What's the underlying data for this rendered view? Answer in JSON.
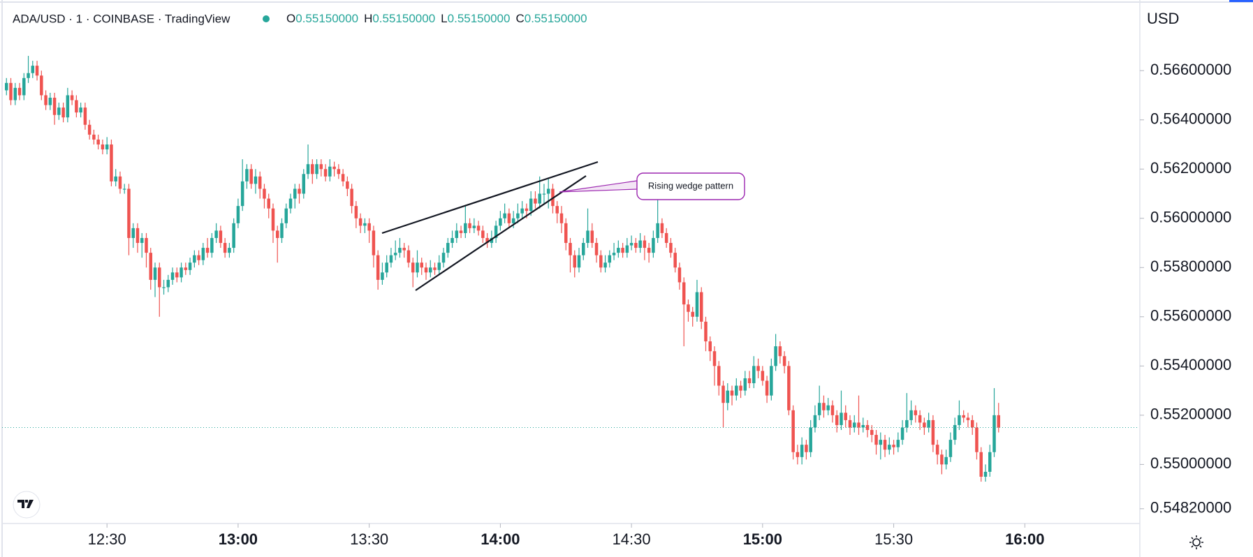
{
  "header": {
    "symbol": "ADA/USD · 1 · COINBASE · TradingView",
    "ohlc": [
      {
        "label": "O",
        "value": "0.55150000"
      },
      {
        "label": "H",
        "value": "0.55150000"
      },
      {
        "label": "L",
        "value": "0.55150000"
      },
      {
        "label": "C",
        "value": "0.55150000"
      }
    ],
    "currency": "USD"
  },
  "chart_data": {
    "type": "candlestick",
    "annotation": "Rising wedge pattern",
    "up_color": "#26a69a",
    "down_color": "#ef5350",
    "grid": false,
    "xlim": [
      "12:06",
      "16:26"
    ],
    "xticks": [
      "12:30",
      "13:00",
      "13:30",
      "14:00",
      "14:30",
      "15:00",
      "15:30",
      "16:00"
    ],
    "ylim": [
      0.5476,
      0.5687
    ],
    "yticks": [
      {
        "value": 0.566,
        "label": "0.56600000"
      },
      {
        "value": 0.564,
        "label": "0.56400000"
      },
      {
        "value": 0.562,
        "label": "0.56200000"
      },
      {
        "value": 0.56,
        "label": "0.56000000"
      },
      {
        "value": 0.558,
        "label": "0.55800000"
      },
      {
        "value": 0.556,
        "label": "0.55600000"
      },
      {
        "value": 0.554,
        "label": "0.55400000"
      },
      {
        "value": 0.552,
        "label": "0.55200000"
      },
      {
        "value": 0.55,
        "label": "0.55000000"
      },
      {
        "value": 0.5482,
        "label": "0.54820000"
      }
    ],
    "x": [
      "12:07",
      "12:08",
      "12:09",
      "12:10",
      "12:11",
      "12:12",
      "12:13",
      "12:14",
      "12:15",
      "12:16",
      "12:17",
      "12:18",
      "12:19",
      "12:20",
      "12:21",
      "12:22",
      "12:23",
      "12:24",
      "12:25",
      "12:26",
      "12:27",
      "12:28",
      "12:29",
      "12:30",
      "12:31",
      "12:32",
      "12:33",
      "12:34",
      "12:35",
      "12:36",
      "12:37",
      "12:38",
      "12:39",
      "12:40",
      "12:41",
      "12:42",
      "12:43",
      "12:44",
      "12:45",
      "12:46",
      "12:47",
      "12:48",
      "12:49",
      "12:50",
      "12:51",
      "12:52",
      "12:53",
      "12:54",
      "12:55",
      "12:56",
      "12:57",
      "12:58",
      "12:59",
      "13:00",
      "13:01",
      "13:02",
      "13:03",
      "13:04",
      "13:05",
      "13:06",
      "13:07",
      "13:08",
      "13:09",
      "13:10",
      "13:11",
      "13:12",
      "13:13",
      "13:14",
      "13:15",
      "13:16",
      "13:17",
      "13:18",
      "13:19",
      "13:20",
      "13:21",
      "13:22",
      "13:23",
      "13:24",
      "13:25",
      "13:26",
      "13:27",
      "13:28",
      "13:29",
      "13:30",
      "13:31",
      "13:32",
      "13:33",
      "13:34",
      "13:35",
      "13:36",
      "13:37",
      "13:38",
      "13:39",
      "13:40",
      "13:41",
      "13:42",
      "13:43",
      "13:44",
      "13:45",
      "13:46",
      "13:47",
      "13:48",
      "13:49",
      "13:50",
      "13:51",
      "13:52",
      "13:53",
      "13:54",
      "13:55",
      "13:56",
      "13:57",
      "13:58",
      "13:59",
      "14:00",
      "14:01",
      "14:02",
      "14:03",
      "14:04",
      "14:05",
      "14:06",
      "14:07",
      "14:08",
      "14:09",
      "14:10",
      "14:11",
      "14:12",
      "14:13",
      "14:14",
      "14:15",
      "14:16",
      "14:17",
      "14:18",
      "14:19",
      "14:20",
      "14:21",
      "14:22",
      "14:23",
      "14:24",
      "14:25",
      "14:26",
      "14:27",
      "14:28",
      "14:29",
      "14:30",
      "14:31",
      "14:32",
      "14:33",
      "14:34",
      "14:35",
      "14:36",
      "14:37",
      "14:38",
      "14:39",
      "14:40",
      "14:41",
      "14:42",
      "14:43",
      "14:44",
      "14:45",
      "14:46",
      "14:47",
      "14:48",
      "14:49",
      "14:50",
      "14:51",
      "14:52",
      "14:53",
      "14:54",
      "14:55",
      "14:56",
      "14:57",
      "14:58",
      "14:59",
      "15:00",
      "15:01",
      "15:02",
      "15:03",
      "15:04",
      "15:05",
      "15:06",
      "15:07",
      "15:08",
      "15:09",
      "15:10",
      "15:11",
      "15:12",
      "15:13",
      "15:14",
      "15:15",
      "15:16",
      "15:17",
      "15:18",
      "15:19",
      "15:20",
      "15:21",
      "15:22",
      "15:23",
      "15:24",
      "15:25",
      "15:26",
      "15:27",
      "15:28",
      "15:29",
      "15:30",
      "15:31",
      "15:32",
      "15:33",
      "15:34",
      "15:35",
      "15:36",
      "15:37",
      "15:38",
      "15:39",
      "15:40",
      "15:41",
      "15:42",
      "15:43",
      "15:44",
      "15:45",
      "15:46",
      "15:47",
      "15:48",
      "15:49",
      "15:50",
      "15:51",
      "15:52",
      "15:53",
      "15:54"
    ],
    "open": [
      0.5652,
      0.5655,
      0.5648,
      0.5653,
      0.565,
      0.5657,
      0.5659,
      0.5662,
      0.5658,
      0.565,
      0.5646,
      0.5649,
      0.5642,
      0.5645,
      0.5641,
      0.565,
      0.5648,
      0.5643,
      0.5645,
      0.5638,
      0.5634,
      0.5632,
      0.563,
      0.5628,
      0.563,
      0.5615,
      0.5617,
      0.5612,
      0.5612,
      0.5592,
      0.5596,
      0.559,
      0.5592,
      0.5586,
      0.5575,
      0.558,
      0.5572,
      0.5572,
      0.5575,
      0.5578,
      0.5576,
      0.558,
      0.5579,
      0.5582,
      0.5585,
      0.5583,
      0.5588,
      0.5586,
      0.5592,
      0.5595,
      0.559,
      0.5586,
      0.5588,
      0.5598,
      0.5605,
      0.5615,
      0.562,
      0.5614,
      0.5617,
      0.5612,
      0.5608,
      0.5604,
      0.5595,
      0.5592,
      0.5598,
      0.5604,
      0.5608,
      0.5612,
      0.561,
      0.5618,
      0.5622,
      0.5618,
      0.5622,
      0.562,
      0.5617,
      0.5621,
      0.562,
      0.5618,
      0.5615,
      0.5612,
      0.5605,
      0.56,
      0.5597,
      0.5598,
      0.5595,
      0.5585,
      0.5575,
      0.5578,
      0.5582,
      0.5585,
      0.5586,
      0.5588,
      0.5587,
      0.5582,
      0.5578,
      0.5582,
      0.558,
      0.5578,
      0.558,
      0.5579,
      0.5582,
      0.5586,
      0.559,
      0.5592,
      0.5595,
      0.5594,
      0.5598,
      0.5596,
      0.5597,
      0.5595,
      0.5592,
      0.559,
      0.5592,
      0.5597,
      0.56,
      0.5602,
      0.5598,
      0.56,
      0.5602,
      0.5604,
      0.5603,
      0.5608,
      0.5606,
      0.561,
      0.561,
      0.5612,
      0.5605,
      0.5602,
      0.5598,
      0.559,
      0.5585,
      0.558,
      0.5585,
      0.559,
      0.5595,
      0.559,
      0.5585,
      0.558,
      0.5582,
      0.5585,
      0.5586,
      0.5588,
      0.5586,
      0.5589,
      0.559,
      0.5588,
      0.5591,
      0.5588,
      0.5586,
      0.5592,
      0.5598,
      0.5594,
      0.559,
      0.5586,
      0.558,
      0.5574,
      0.5565,
      0.5562,
      0.556,
      0.557,
      0.5558,
      0.555,
      0.5546,
      0.554,
      0.5532,
      0.5525,
      0.553,
      0.5528,
      0.5532,
      0.553,
      0.5535,
      0.5533,
      0.554,
      0.5538,
      0.5534,
      0.5528,
      0.554,
      0.5548,
      0.5544,
      0.554,
      0.5522,
      0.5505,
      0.5503,
      0.5508,
      0.5505,
      0.5515,
      0.552,
      0.5525,
      0.5522,
      0.5524,
      0.552,
      0.5516,
      0.5521,
      0.5518,
      0.5515,
      0.5517,
      0.5515,
      0.5516,
      0.5514,
      0.5512,
      0.5508,
      0.551,
      0.5506,
      0.5508,
      0.5507,
      0.551,
      0.5515,
      0.5518,
      0.5522,
      0.552,
      0.5517,
      0.5515,
      0.5518,
      0.5508,
      0.5504,
      0.55,
      0.5503,
      0.551,
      0.5516,
      0.552,
      0.5519,
      0.5518,
      0.5515,
      0.5505,
      0.5495,
      0.5497,
      0.5505,
      0.552
    ],
    "high": [
      0.5657,
      0.5657,
      0.5655,
      0.5655,
      0.5659,
      0.5666,
      0.5664,
      0.5664,
      0.566,
      0.5652,
      0.5651,
      0.5651,
      0.5647,
      0.5647,
      0.5653,
      0.5652,
      0.565,
      0.5647,
      0.5647,
      0.564,
      0.5636,
      0.5634,
      0.5632,
      0.5633,
      0.5632,
      0.562,
      0.5619,
      0.5614,
      0.5614,
      0.5598,
      0.5598,
      0.5594,
      0.5594,
      0.5588,
      0.5582,
      0.5582,
      0.5575,
      0.5577,
      0.558,
      0.558,
      0.5582,
      0.5582,
      0.5584,
      0.5587,
      0.5587,
      0.559,
      0.5592,
      0.5594,
      0.5598,
      0.5597,
      0.5592,
      0.559,
      0.56,
      0.5608,
      0.5624,
      0.5622,
      0.5622,
      0.562,
      0.5619,
      0.5614,
      0.561,
      0.5606,
      0.5597,
      0.56,
      0.5606,
      0.561,
      0.5614,
      0.5614,
      0.562,
      0.563,
      0.5624,
      0.5624,
      0.5624,
      0.5622,
      0.5624,
      0.5623,
      0.5622,
      0.562,
      0.5617,
      0.5614,
      0.5607,
      0.5602,
      0.56,
      0.56,
      0.5597,
      0.5587,
      0.5582,
      0.5585,
      0.5588,
      0.5591,
      0.5592,
      0.559,
      0.5589,
      0.5584,
      0.5587,
      0.5584,
      0.5582,
      0.5583,
      0.5582,
      0.5585,
      0.5588,
      0.5592,
      0.5595,
      0.5598,
      0.5597,
      0.5605,
      0.56,
      0.56,
      0.5599,
      0.5597,
      0.5594,
      0.5595,
      0.5599,
      0.5603,
      0.5606,
      0.5604,
      0.5603,
      0.5606,
      0.5607,
      0.5606,
      0.5611,
      0.5611,
      0.5617,
      0.5614,
      0.5616,
      0.5614,
      0.5607,
      0.5605,
      0.56,
      0.5592,
      0.5587,
      0.5588,
      0.5592,
      0.5604,
      0.5598,
      0.5592,
      0.5587,
      0.5585,
      0.5587,
      0.559,
      0.5591,
      0.559,
      0.5592,
      0.5593,
      0.5592,
      0.5594,
      0.5593,
      0.559,
      0.5595,
      0.5608,
      0.56,
      0.5596,
      0.5592,
      0.5588,
      0.5582,
      0.5576,
      0.5567,
      0.5564,
      0.5575,
      0.5572,
      0.556,
      0.5552,
      0.5548,
      0.5542,
      0.5534,
      0.5533,
      0.5532,
      0.5535,
      0.5534,
      0.5538,
      0.5538,
      0.5544,
      0.5543,
      0.554,
      0.5536,
      0.5543,
      0.5553,
      0.555,
      0.5546,
      0.5542,
      0.5524,
      0.5508,
      0.5511,
      0.551,
      0.5518,
      0.5524,
      0.5532,
      0.5528,
      0.5527,
      0.5526,
      0.5522,
      0.553,
      0.5524,
      0.552,
      0.552,
      0.5528,
      0.5519,
      0.5518,
      0.5516,
      0.5514,
      0.5513,
      0.5512,
      0.5511,
      0.551,
      0.5513,
      0.5518,
      0.5529,
      0.5526,
      0.5524,
      0.5522,
      0.5519,
      0.5521,
      0.552,
      0.551,
      0.5506,
      0.5506,
      0.5513,
      0.5519,
      0.5526,
      0.5522,
      0.5521,
      0.552,
      0.5517,
      0.5507,
      0.55,
      0.5508,
      0.5531,
      0.5525
    ],
    "low": [
      0.565,
      0.5646,
      0.5646,
      0.5648,
      0.5648,
      0.5655,
      0.5657,
      0.5656,
      0.5648,
      0.5644,
      0.5644,
      0.5638,
      0.564,
      0.5639,
      0.5639,
      0.5646,
      0.5641,
      0.5641,
      0.5636,
      0.5632,
      0.563,
      0.5628,
      0.5626,
      0.5626,
      0.5613,
      0.5613,
      0.561,
      0.561,
      0.5585,
      0.5588,
      0.5586,
      0.5584,
      0.558,
      0.5571,
      0.5568,
      0.556,
      0.5569,
      0.557,
      0.5573,
      0.5574,
      0.5574,
      0.5577,
      0.5577,
      0.558,
      0.5581,
      0.5581,
      0.5584,
      0.5584,
      0.559,
      0.5588,
      0.5584,
      0.5584,
      0.5586,
      0.5596,
      0.5603,
      0.5612,
      0.5612,
      0.561,
      0.5608,
      0.5604,
      0.56,
      0.559,
      0.5582,
      0.559,
      0.5596,
      0.5602,
      0.5604,
      0.5606,
      0.5608,
      0.5616,
      0.5614,
      0.5616,
      0.5617,
      0.5615,
      0.5615,
      0.5617,
      0.5616,
      0.5613,
      0.5609,
      0.5602,
      0.5596,
      0.5594,
      0.5594,
      0.559,
      0.558,
      0.5571,
      0.5573,
      0.5576,
      0.558,
      0.5583,
      0.5584,
      0.5584,
      0.558,
      0.5572,
      0.5576,
      0.5577,
      0.5575,
      0.5576,
      0.5577,
      0.5577,
      0.558,
      0.5584,
      0.5588,
      0.559,
      0.5592,
      0.5592,
      0.5594,
      0.5594,
      0.5593,
      0.559,
      0.5588,
      0.5588,
      0.559,
      0.5595,
      0.5598,
      0.5596,
      0.5596,
      0.5598,
      0.56,
      0.56,
      0.5601,
      0.5604,
      0.5604,
      0.5606,
      0.5604,
      0.5602,
      0.5598,
      0.5594,
      0.5587,
      0.5578,
      0.5576,
      0.5578,
      0.5583,
      0.5588,
      0.5588,
      0.5582,
      0.5578,
      0.5578,
      0.558,
      0.5583,
      0.5584,
      0.5584,
      0.5584,
      0.5587,
      0.5586,
      0.5586,
      0.5583,
      0.5582,
      0.5584,
      0.559,
      0.5592,
      0.5588,
      0.5584,
      0.5578,
      0.5571,
      0.5548,
      0.5558,
      0.5556,
      0.5558,
      0.5555,
      0.5546,
      0.5542,
      0.5532,
      0.5528,
      0.5515,
      0.5522,
      0.5524,
      0.5526,
      0.5527,
      0.5528,
      0.5531,
      0.5531,
      0.5535,
      0.5532,
      0.5525,
      0.5526,
      0.5538,
      0.5541,
      0.5537,
      0.552,
      0.5502,
      0.55,
      0.55,
      0.5502,
      0.5503,
      0.5513,
      0.5518,
      0.5519,
      0.552,
      0.5517,
      0.5513,
      0.5514,
      0.5515,
      0.5512,
      0.5513,
      0.5512,
      0.5513,
      0.5511,
      0.5509,
      0.5504,
      0.5502,
      0.5503,
      0.5504,
      0.5504,
      0.5505,
      0.5508,
      0.5513,
      0.5516,
      0.5517,
      0.5514,
      0.5512,
      0.5513,
      0.5505,
      0.55,
      0.5496,
      0.5498,
      0.5501,
      0.5508,
      0.5514,
      0.5517,
      0.5515,
      0.5512,
      0.5502,
      0.5493,
      0.5493,
      0.5495,
      0.5503,
      0.5513
    ],
    "close": [
      0.5655,
      0.5648,
      0.5653,
      0.565,
      0.5657,
      0.5659,
      0.5662,
      0.5658,
      0.565,
      0.5646,
      0.5649,
      0.5642,
      0.5645,
      0.5641,
      0.565,
      0.5648,
      0.5643,
      0.5645,
      0.5638,
      0.5634,
      0.5632,
      0.563,
      0.5628,
      0.563,
      0.5615,
      0.5617,
      0.5612,
      0.5612,
      0.5592,
      0.5596,
      0.559,
      0.5592,
      0.5586,
      0.5575,
      0.558,
      0.5572,
      0.5572,
      0.5575,
      0.5578,
      0.5576,
      0.558,
      0.5579,
      0.5582,
      0.5585,
      0.5583,
      0.5588,
      0.5586,
      0.5592,
      0.5595,
      0.559,
      0.5586,
      0.5588,
      0.5598,
      0.5605,
      0.5615,
      0.562,
      0.5614,
      0.5617,
      0.5612,
      0.5608,
      0.5604,
      0.5595,
      0.5592,
      0.5598,
      0.5604,
      0.5608,
      0.5612,
      0.561,
      0.5618,
      0.5622,
      0.5618,
      0.5622,
      0.562,
      0.5617,
      0.5621,
      0.562,
      0.5618,
      0.5615,
      0.5612,
      0.5605,
      0.56,
      0.5597,
      0.5598,
      0.5595,
      0.5585,
      0.5575,
      0.5578,
      0.5582,
      0.5585,
      0.5586,
      0.5588,
      0.5587,
      0.5582,
      0.5578,
      0.5582,
      0.558,
      0.5578,
      0.558,
      0.5579,
      0.5582,
      0.5586,
      0.559,
      0.5592,
      0.5595,
      0.5594,
      0.5598,
      0.5596,
      0.5597,
      0.5595,
      0.5592,
      0.559,
      0.5592,
      0.5597,
      0.56,
      0.5602,
      0.5598,
      0.56,
      0.5602,
      0.5604,
      0.5603,
      0.5608,
      0.5606,
      0.561,
      0.561,
      0.5612,
      0.5605,
      0.5602,
      0.5598,
      0.559,
      0.5585,
      0.558,
      0.5585,
      0.559,
      0.5595,
      0.559,
      0.5585,
      0.558,
      0.5582,
      0.5585,
      0.5586,
      0.5588,
      0.5586,
      0.5589,
      0.559,
      0.5588,
      0.5591,
      0.5588,
      0.5586,
      0.5592,
      0.5598,
      0.5594,
      0.559,
      0.5586,
      0.558,
      0.5574,
      0.5565,
      0.5562,
      0.556,
      0.557,
      0.5558,
      0.555,
      0.5546,
      0.554,
      0.5532,
      0.5525,
      0.553,
      0.5528,
      0.5532,
      0.553,
      0.5535,
      0.5533,
      0.554,
      0.5538,
      0.5534,
      0.5528,
      0.554,
      0.5548,
      0.5544,
      0.554,
      0.5522,
      0.5505,
      0.5503,
      0.5508,
      0.5505,
      0.5515,
      0.552,
      0.5525,
      0.5522,
      0.5524,
      0.552,
      0.5516,
      0.5521,
      0.5518,
      0.5515,
      0.5517,
      0.5515,
      0.5516,
      0.5514,
      0.5512,
      0.5508,
      0.551,
      0.5506,
      0.5508,
      0.5507,
      0.551,
      0.5515,
      0.5518,
      0.5522,
      0.552,
      0.5517,
      0.5515,
      0.5518,
      0.5508,
      0.5504,
      0.55,
      0.5503,
      0.551,
      0.5516,
      0.552,
      0.5519,
      0.5518,
      0.5515,
      0.5505,
      0.5495,
      0.5497,
      0.5505,
      0.552,
      0.5515
    ]
  }
}
